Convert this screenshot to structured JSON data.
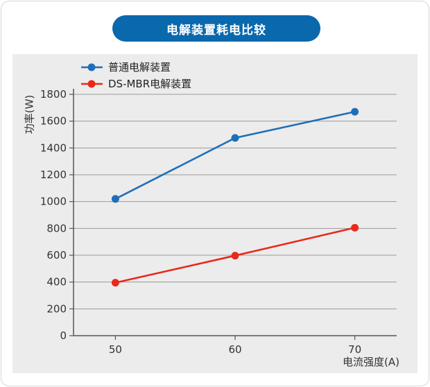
{
  "chart_data": {
    "type": "line",
    "title": "电解装置耗电比较",
    "xlabel": "电流强度(A)",
    "ylabel": "功率(W)",
    "x": [
      50,
      60,
      70
    ],
    "xlim": [
      46.5,
      73.5
    ],
    "ylim": [
      0,
      1800
    ],
    "yticks": [
      0,
      200,
      400,
      600,
      800,
      1000,
      1200,
      1400,
      1600,
      1800
    ],
    "grid": true,
    "legend_position": "top-left",
    "series": [
      {
        "name": "普通电解装置",
        "color": "#1f6fb8",
        "values": [
          1020,
          1475,
          1670
        ]
      },
      {
        "name": "DS-MBR电解装置",
        "color": "#e8291c",
        "values": [
          395,
          597,
          805
        ]
      }
    ]
  }
}
